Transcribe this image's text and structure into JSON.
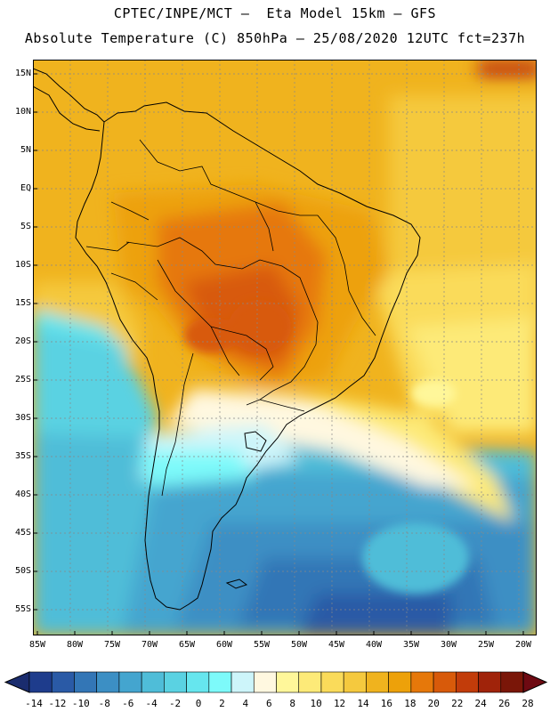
{
  "header": {
    "line1": "CPTEC/INPE/MCT –  Eta Model 15km – GFS",
    "line2": "Absolute Temperature (C) 850hPa – 25/08/2020 12UTC fct=237h"
  },
  "map": {
    "lat_labels": [
      "15N",
      "10N",
      "5N",
      "EQ",
      "5S",
      "10S",
      "15S",
      "20S",
      "25S",
      "30S",
      "35S",
      "40S",
      "45S",
      "50S",
      "55S"
    ],
    "lon_labels": [
      "85W",
      "80W",
      "75W",
      "70W",
      "65W",
      "60W",
      "55W",
      "50W",
      "45W",
      "40W",
      "35W",
      "30W",
      "25W",
      "20W"
    ],
    "variable": "Absolute Temperature",
    "units": "C",
    "level": "850hPa"
  },
  "colorbar": {
    "labels": [
      "-14",
      "-12",
      "-10",
      "-8",
      "-6",
      "-4",
      "-2",
      "0",
      "2",
      "4",
      "6",
      "8",
      "10",
      "12",
      "14",
      "16",
      "18",
      "20",
      "22",
      "24",
      "26",
      "28"
    ],
    "colors": [
      "#1e3c8c",
      "#2a5aa6",
      "#3376b6",
      "#3c8fc4",
      "#44a5cf",
      "#4fbdd8",
      "#5ad2e2",
      "#66e6ee",
      "#7dfafa",
      "#cdf5fa",
      "#fff8e0",
      "#fff79a",
      "#fdea78",
      "#fadb5a",
      "#f5c93e",
      "#f0b31e",
      "#eda10a",
      "#e6780a",
      "#d85a0a",
      "#c23c0a",
      "#a0230a",
      "#7a1608"
    ],
    "left_arrow_color": "#1a2c6e",
    "right_arrow_color": "#6e0a12"
  }
}
